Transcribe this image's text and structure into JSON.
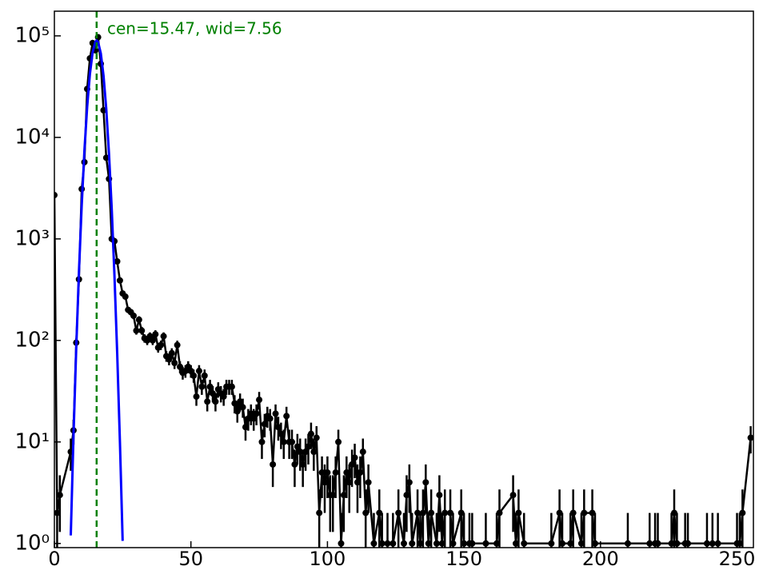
{
  "chart_data": {
    "type": "line",
    "annotation": "cen=15.47, wid=7.56",
    "annotation_color": "#008000",
    "vline": {
      "x": 15.47,
      "color": "#008000"
    },
    "log_y": true,
    "xlim": [
      0,
      256
    ],
    "xticks": [
      0,
      50,
      100,
      150,
      200,
      250
    ],
    "ylim": [
      0.91,
      175000
    ],
    "yticks": [
      {
        "value": 1,
        "label": "10⁰"
      },
      {
        "value": 10,
        "label": "10¹"
      },
      {
        "value": 100,
        "label": "10²"
      },
      {
        "value": 1000,
        "label": "10³"
      },
      {
        "value": 10000,
        "label": "10⁴"
      },
      {
        "value": 100000,
        "label": "10⁵"
      }
    ],
    "series": [
      {
        "color": "#000000",
        "markers": true,
        "x": [
          0,
          1,
          2,
          6,
          7,
          8,
          9,
          10,
          11,
          12,
          13,
          14,
          15,
          16,
          17,
          18,
          19,
          20,
          21,
          22,
          23,
          24,
          25,
          26,
          27,
          28,
          29,
          30,
          31,
          32,
          33,
          34,
          35,
          36,
          37,
          38,
          39,
          40,
          41,
          42,
          43,
          44,
          45,
          46,
          47,
          48,
          49,
          50,
          51,
          52,
          53,
          54,
          55,
          56,
          57,
          58,
          59,
          60,
          61,
          62,
          63,
          64,
          65,
          66,
          67,
          68,
          69,
          70,
          71,
          72,
          73,
          74,
          75,
          76,
          77,
          78,
          79,
          80,
          81,
          82,
          83,
          84,
          85,
          86,
          87,
          88,
          89,
          90,
          91,
          92,
          93,
          94,
          95,
          96,
          97,
          98,
          99,
          100,
          101,
          102,
          103,
          104,
          105,
          106,
          107,
          108,
          109,
          110,
          111,
          112,
          113,
          114,
          115,
          117,
          119,
          120,
          122,
          124,
          126,
          128,
          129,
          130,
          131,
          133,
          134,
          135,
          136,
          137,
          138,
          140,
          141,
          142,
          143,
          145,
          146,
          149,
          150,
          152,
          153,
          158,
          162,
          163,
          168,
          169,
          170,
          172,
          182,
          185,
          186,
          189,
          190,
          193,
          194,
          197,
          198,
          210,
          218,
          220,
          221,
          226,
          227,
          228,
          231,
          232,
          239,
          241,
          243,
          250,
          251,
          252,
          255
        ],
        "values": [
          2700,
          2,
          3,
          8,
          13,
          95,
          400,
          3100,
          5700,
          30000,
          60000,
          85000,
          72000,
          97000,
          53000,
          18500,
          6300,
          3900,
          1000,
          950,
          600,
          390,
          290,
          270,
          200,
          190,
          175,
          125,
          160,
          125,
          105,
          100,
          110,
          100,
          115,
          85,
          90,
          110,
          70,
          65,
          75,
          60,
          90,
          55,
          48,
          50,
          55,
          50,
          45,
          28,
          50,
          35,
          45,
          25,
          35,
          30,
          25,
          33,
          30,
          28,
          35,
          35,
          35,
          24,
          20,
          25,
          22,
          14,
          17,
          19,
          17,
          19,
          26,
          10,
          15,
          18,
          17,
          6,
          19,
          14,
          12,
          10,
          18,
          10,
          10,
          6,
          9,
          8,
          6,
          8,
          9,
          12,
          8,
          11,
          2,
          5,
          4,
          5,
          3,
          3,
          5,
          10,
          1,
          3,
          5,
          4,
          6,
          7,
          4,
          5,
          8,
          2,
          4,
          1,
          2,
          1,
          1,
          1,
          2,
          1,
          3,
          4,
          1,
          2,
          1,
          2,
          4,
          1,
          2,
          1,
          3,
          1,
          2,
          2,
          1,
          2,
          1,
          1,
          1,
          1,
          1,
          2,
          3,
          1,
          2,
          1,
          1,
          2,
          1,
          1,
          2,
          1,
          2,
          2,
          1,
          1,
          1,
          1,
          1,
          1,
          2,
          1,
          1,
          1,
          1,
          1,
          1,
          1,
          1,
          2,
          11
        ],
        "errors": [
          52,
          1.4,
          1.7,
          2.8,
          3.6,
          9.7,
          20,
          56,
          75,
          173,
          245,
          292,
          268,
          311,
          230,
          136,
          79,
          62,
          32,
          31,
          24,
          20,
          17,
          16,
          14,
          14,
          13,
          11,
          13,
          11,
          10,
          10,
          10,
          10,
          11,
          9.2,
          9.5,
          10,
          8.4,
          8.1,
          8.7,
          7.7,
          9.5,
          7.4,
          6.9,
          7.1,
          7.4,
          7.1,
          6.7,
          5.3,
          7.1,
          5.9,
          6.7,
          5,
          5.9,
          5.5,
          5,
          5.7,
          5.5,
          5.3,
          5.9,
          5.9,
          5.9,
          4.9,
          4.5,
          5,
          4.7,
          3.7,
          4.1,
          4.4,
          4.1,
          4.4,
          5.1,
          3.2,
          3.9,
          4.2,
          4.1,
          2.4,
          4.4,
          3.7,
          3.5,
          3.2,
          4.2,
          3.2,
          3.2,
          2.4,
          3,
          2.8,
          2.4,
          2.8,
          3,
          3.5,
          2.8,
          3.3,
          1.4,
          2.2,
          2,
          2.2,
          1.7,
          1.7,
          2.2,
          3.2,
          1,
          1.7,
          2.2,
          2,
          2.4,
          2.6,
          2,
          2.2,
          2.8,
          1.4,
          2,
          1,
          1.4,
          1,
          1,
          1,
          1.4,
          1,
          1.7,
          2,
          1,
          1.4,
          1,
          1.4,
          2,
          1,
          1.4,
          1,
          1.7,
          1,
          1.4,
          1.4,
          1,
          1.4,
          1,
          1,
          1,
          1,
          1,
          1.4,
          1.7,
          1,
          1.4,
          1,
          1,
          1.4,
          1,
          1,
          1.4,
          1,
          1.4,
          1.4,
          1,
          1,
          1,
          1,
          1,
          1,
          1.4,
          1,
          1,
          1,
          1,
          1,
          1,
          1,
          1,
          1.4,
          3.3
        ]
      },
      {
        "color": "#0000ff",
        "markers": false,
        "x": [
          6,
          7,
          8,
          9,
          10,
          11,
          12,
          13,
          14,
          15,
          15.47,
          16,
          17,
          18,
          19,
          20,
          21,
          22,
          23,
          24,
          25
        ],
        "values": [
          1.2,
          11.5,
          84,
          480,
          2130,
          7400,
          20000,
          42000,
          68700,
          87500,
          90000,
          86900,
          67200,
          40400,
          19000,
          6900,
          1970,
          436,
          75,
          10,
          1.06
        ]
      }
    ]
  }
}
